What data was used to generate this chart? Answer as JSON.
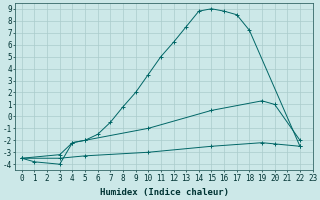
{
  "xlabel": "Humidex (Indice chaleur)",
  "bg_color": "#cce8e8",
  "grid_color": "#aacccc",
  "line_color": "#006666",
  "xlim": [
    -0.5,
    23
  ],
  "ylim": [
    -4.5,
    9.5
  ],
  "xticks": [
    0,
    1,
    2,
    3,
    4,
    5,
    6,
    7,
    8,
    9,
    10,
    11,
    12,
    13,
    14,
    15,
    16,
    17,
    18,
    19,
    20,
    21,
    22,
    23
  ],
  "yticks": [
    -4,
    -3,
    -2,
    -1,
    0,
    1,
    2,
    3,
    4,
    5,
    6,
    7,
    8,
    9
  ],
  "line1_x": [
    0,
    1,
    3,
    4,
    5,
    6,
    7,
    8,
    9,
    10,
    11,
    12,
    13,
    14,
    15,
    16,
    17,
    18,
    22
  ],
  "line1_y": [
    -3.5,
    -3.8,
    -4.0,
    -2.2,
    -2.0,
    -1.5,
    -0.5,
    0.8,
    2.0,
    3.5,
    5.0,
    6.2,
    7.5,
    8.8,
    9.0,
    8.8,
    8.5,
    7.2,
    -2.5
  ],
  "line2_x": [
    0,
    3,
    4,
    5,
    10,
    15,
    19,
    20,
    22
  ],
  "line2_y": [
    -3.5,
    -3.2,
    -2.2,
    -2.0,
    -1.0,
    0.5,
    1.3,
    1.0,
    -2.0
  ],
  "line3_x": [
    0,
    3,
    5,
    10,
    15,
    19,
    20,
    22
  ],
  "line3_y": [
    -3.5,
    -3.5,
    -3.3,
    -3.0,
    -2.5,
    -2.2,
    -2.3,
    -2.5
  ],
  "tick_fontsize": 5.5,
  "xlabel_fontsize": 6.5
}
